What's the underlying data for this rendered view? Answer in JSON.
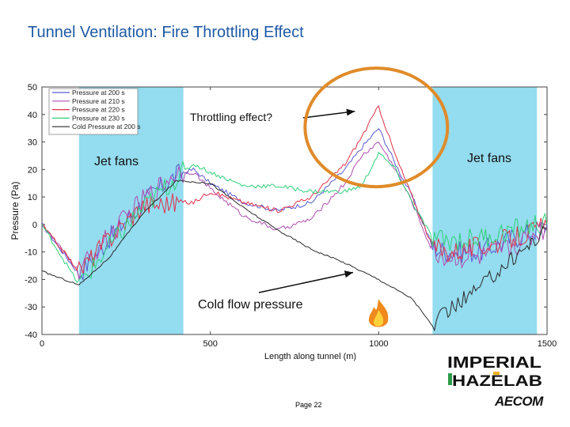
{
  "slide": {
    "title": "Tunnel Ventilation: Fire Throttling Effect",
    "page_label": "Page 22"
  },
  "logos": {
    "imperial_top": "IMPERIAL",
    "imperial_bottom": "HAZELAB",
    "aecom": "AECOM"
  },
  "chart_data": {
    "type": "line",
    "title": "",
    "xlabel": "Length along tunnel (m)",
    "ylabel": "Pressure (Pa)",
    "xlim": [
      0,
      1500
    ],
    "ylim": [
      -40,
      50
    ],
    "xticks": [
      "0",
      "500",
      "1000",
      "1500"
    ],
    "yticks": [
      "-40",
      "-30",
      "-20",
      "-10",
      "0",
      "10",
      "20",
      "30",
      "40",
      "50"
    ],
    "grid": false,
    "legend_position": "top-left",
    "shaded_regions": [
      {
        "x_range": [
          110,
          420
        ],
        "label": "Jet fans",
        "color": "#94dcef"
      },
      {
        "x_range": [
          1160,
          1470
        ],
        "label": "Jet fans",
        "color": "#94dcef"
      }
    ],
    "annotations": [
      {
        "text": "Throttling effect?",
        "target_x": 1000,
        "target_y": 40,
        "kind": "arrow"
      },
      {
        "text": "Cold flow pressure",
        "target_x": 910,
        "target_y": -18,
        "kind": "arrow"
      },
      {
        "text": "",
        "kind": "circle-highlight",
        "center_x": 1000,
        "center_y": 31
      }
    ],
    "series": [
      {
        "name": "Pressure at 200 s",
        "color": "#5a5ad0",
        "x": [
          0,
          110,
          200,
          300,
          400,
          450,
          500,
          600,
          700,
          800,
          900,
          950,
          1000,
          1050,
          1100,
          1160,
          1200,
          1300,
          1400,
          1470,
          1500
        ],
        "y": [
          0,
          -18,
          -5,
          8,
          18,
          20,
          15,
          8,
          5,
          8,
          20,
          28,
          35,
          22,
          10,
          -8,
          -10,
          -10,
          -5,
          -2,
          0
        ]
      },
      {
        "name": "Pressure at 210 s",
        "color": "#b04eb0",
        "x": [
          0,
          110,
          200,
          300,
          400,
          450,
          500,
          600,
          700,
          800,
          900,
          950,
          1000,
          1050,
          1100,
          1160,
          1200,
          1300,
          1400,
          1470,
          1500
        ],
        "y": [
          0,
          -17,
          -4,
          9,
          19,
          19,
          13,
          3,
          -2,
          2,
          15,
          25,
          30,
          20,
          8,
          -10,
          -12,
          -12,
          -8,
          -3,
          -1
        ]
      },
      {
        "name": "Pressure at 220 s",
        "color": "#e0324a",
        "x": [
          0,
          110,
          200,
          300,
          400,
          450,
          500,
          600,
          700,
          800,
          900,
          950,
          1000,
          1050,
          1100,
          1160,
          1200,
          1300,
          1400,
          1470,
          1500
        ],
        "y": [
          0,
          -17,
          -5,
          7,
          8,
          8,
          12,
          8,
          5,
          10,
          22,
          32,
          43,
          25,
          10,
          -8,
          -10,
          -8,
          -5,
          -2,
          0
        ]
      },
      {
        "name": "Pressure at 230 s",
        "color": "#2fd07a",
        "x": [
          0,
          110,
          200,
          300,
          400,
          450,
          500,
          600,
          700,
          800,
          900,
          950,
          1000,
          1050,
          1100,
          1160,
          1200,
          1300,
          1400,
          1470,
          1500
        ],
        "y": [
          0,
          -22,
          -8,
          6,
          17,
          22,
          19,
          14,
          14,
          12,
          12,
          14,
          26,
          20,
          8,
          -5,
          -6,
          -5,
          -2,
          0,
          0
        ]
      },
      {
        "name": "Cold Pressure at 200 s",
        "color": "#2a2a2a",
        "x": [
          0,
          110,
          200,
          300,
          400,
          500,
          600,
          700,
          800,
          900,
          1000,
          1100,
          1160,
          1200,
          1300,
          1400,
          1470,
          1500
        ],
        "y": [
          -17,
          -22,
          -12,
          4,
          16,
          15,
          6,
          -2,
          -9,
          -14,
          -20,
          -27,
          -37,
          -32,
          -23,
          -12,
          -5,
          -2
        ]
      }
    ]
  }
}
